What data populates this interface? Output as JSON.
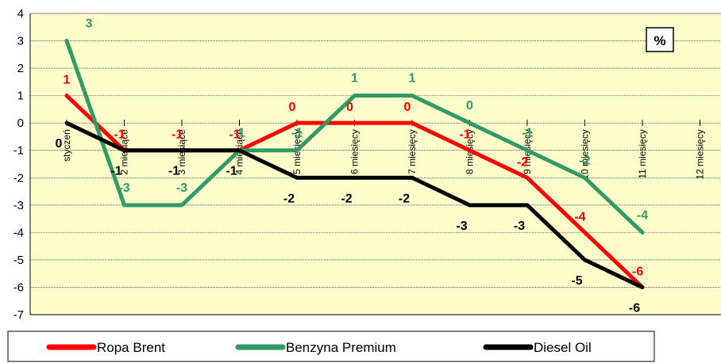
{
  "chart_data": {
    "type": "line",
    "title": "",
    "unit_label": "%",
    "categories": [
      "styczeń",
      "2 miesiące",
      "3 miesiące",
      "4 miesiące",
      "5 miesięcy",
      "6 miesięcy",
      "7 miesięcy",
      "8 miesięcy",
      "9 miesięcy",
      "10 miesięcy",
      "11 miesięcy",
      "12 miesięcy"
    ],
    "ylim": [
      -7,
      4
    ],
    "yticks": [
      "4",
      "3",
      "2",
      "1",
      "0",
      "-1",
      "-2",
      "-3",
      "-4",
      "-5",
      "-6",
      "-7"
    ],
    "grid": true,
    "legend_position": "bottom",
    "plot_background": "#ffffcc",
    "series": [
      {
        "name": "Ropa Brent",
        "color": "#ff0000",
        "values": [
          1,
          -1,
          -1,
          -1,
          0,
          0,
          0,
          -1,
          -2,
          -4,
          -6,
          null
        ],
        "labels": [
          "1",
          "-1",
          "-1",
          "-1",
          "0",
          "0",
          "0",
          "-1",
          "-2",
          "-4",
          "-6",
          ""
        ]
      },
      {
        "name": "Benzyna Premium",
        "color": "#339966",
        "values": [
          3,
          -3,
          -3,
          -1,
          -1,
          1,
          1,
          0,
          -1,
          -2,
          -4,
          null
        ],
        "labels": [
          "3",
          "-3",
          "-3",
          "-1",
          "-1",
          "1",
          "1",
          "0",
          "-1",
          "-2",
          "-4",
          ""
        ]
      },
      {
        "name": "Diesel Oil",
        "color": "#000000",
        "values": [
          0,
          -1,
          -1,
          -1,
          -2,
          -2,
          -2,
          -3,
          -3,
          -5,
          -6,
          null
        ],
        "labels": [
          "0",
          "-1",
          "-1",
          "-1",
          "-2",
          "-2",
          "-2",
          "-3",
          "-3",
          "-5",
          "-6",
          ""
        ]
      }
    ]
  }
}
